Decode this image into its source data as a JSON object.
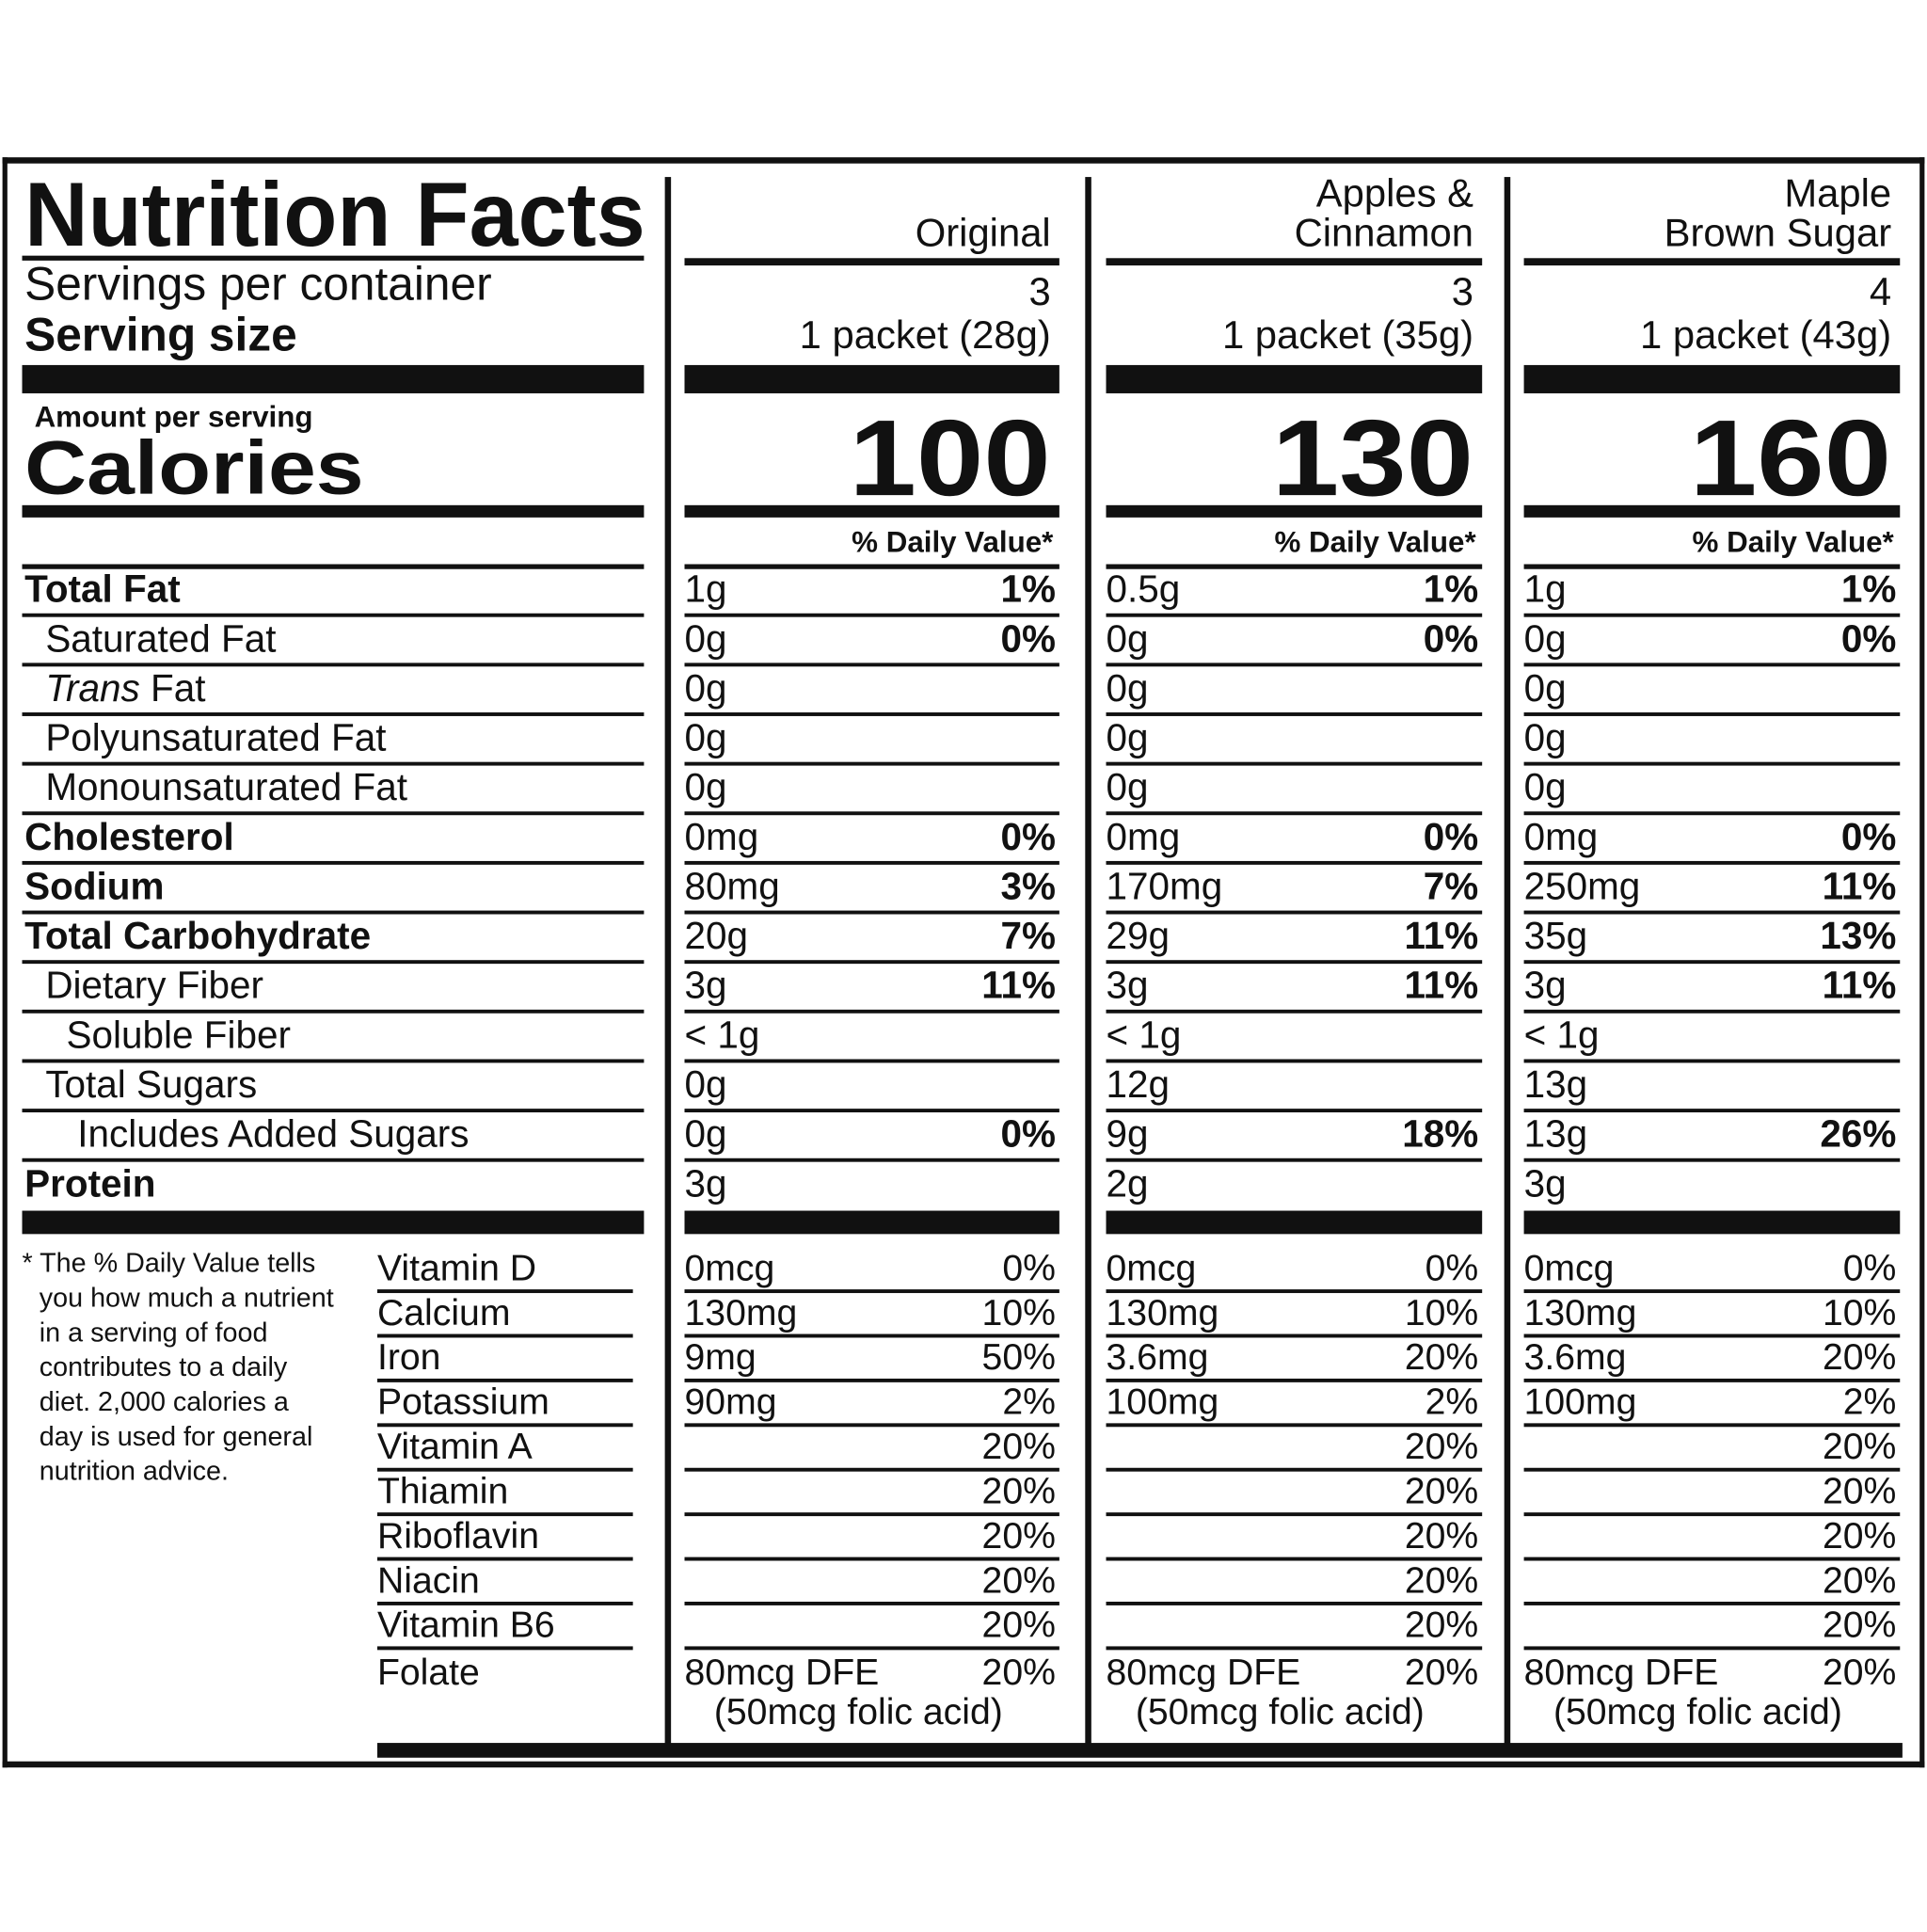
{
  "header": {
    "title": "Nutrition Facts",
    "servings_label": "Servings per container",
    "serving_size_label": "Serving size",
    "amount_per_serving": "Amount per serving",
    "calories_label": "Calories",
    "daily_value_header": "% Daily Value*"
  },
  "nutrients": [
    "Total Fat",
    "Saturated Fat",
    {
      "italic": "Trans",
      "text": "Fat"
    },
    "Polyunsaturated Fat",
    "Monounsaturated Fat",
    "Cholesterol",
    "Sodium",
    "Total Carbohydrate",
    "Dietary Fiber",
    "Soluble Fiber",
    "Total Sugars",
    "Includes Added Sugars",
    "Protein"
  ],
  "vitamins": [
    "Vitamin D",
    "Calcium",
    "Iron",
    "Potassium",
    "Vitamin A",
    "Thiamin",
    "Riboflavin",
    "Niacin",
    "Vitamin B6",
    "Folate"
  ],
  "footnote": [
    "* The % Daily Value tells",
    "you how much a nutrient",
    "in a serving of food",
    "contributes to a daily",
    "diet. 2,000 calories a",
    "day is used for general",
    "nutrition advice."
  ],
  "products": [
    {
      "name": [
        "Original"
      ],
      "servings": "3",
      "serving_size": "1 packet (28g)",
      "calories": "100",
      "amounts": [
        "1g",
        "0g",
        "0g",
        "0g",
        "0g",
        "0mg",
        "80mg",
        "20g",
        "3g",
        "< 1g",
        "0g",
        "0g",
        "3g"
      ],
      "dvs": [
        "1%",
        "0%",
        null,
        null,
        null,
        "0%",
        "3%",
        "7%",
        "11%",
        null,
        null,
        "0%",
        null
      ],
      "vitamin_amounts": [
        "0mcg",
        "130mg",
        "9mg",
        "90mg",
        null,
        null,
        null,
        null,
        null,
        "80mcg DFE"
      ],
      "vitamin_dvs": [
        "0%",
        "10%",
        "50%",
        "2%",
        "20%",
        "20%",
        "20%",
        "20%",
        "20%",
        "20%"
      ],
      "folate_note": "(50mcg folic acid)"
    },
    {
      "name": [
        "Apples &",
        "Cinnamon"
      ],
      "servings": "3",
      "serving_size": "1 packet (35g)",
      "calories": "130",
      "amounts": [
        "0.5g",
        "0g",
        "0g",
        "0g",
        "0g",
        "0mg",
        "170mg",
        "29g",
        "3g",
        "< 1g",
        "12g",
        "9g",
        "2g"
      ],
      "dvs": [
        "1%",
        "0%",
        null,
        null,
        null,
        "0%",
        "7%",
        "11%",
        "11%",
        null,
        null,
        "18%",
        null
      ],
      "vitamin_amounts": [
        "0mcg",
        "130mg",
        "3.6mg",
        "100mg",
        null,
        null,
        null,
        null,
        null,
        "80mcg DFE"
      ],
      "vitamin_dvs": [
        "0%",
        "10%",
        "20%",
        "2%",
        "20%",
        "20%",
        "20%",
        "20%",
        "20%",
        "20%"
      ],
      "folate_note": "(50mcg folic acid)"
    },
    {
      "name": [
        "Maple",
        "Brown Sugar"
      ],
      "servings": "4",
      "serving_size": "1 packet (43g)",
      "calories": "160",
      "amounts": [
        "1g",
        "0g",
        "0g",
        "0g",
        "0g",
        "0mg",
        "250mg",
        "35g",
        "3g",
        "< 1g",
        "13g",
        "13g",
        "3g"
      ],
      "dvs": [
        "1%",
        "0%",
        null,
        null,
        null,
        "0%",
        "11%",
        "13%",
        "11%",
        null,
        null,
        "26%",
        null
      ],
      "vitamin_amounts": [
        "0mcg",
        "130mg",
        "3.6mg",
        "100mg",
        null,
        null,
        null,
        null,
        null,
        "80mcg DFE"
      ],
      "vitamin_dvs": [
        "0%",
        "10%",
        "20%",
        "2%",
        "20%",
        "20%",
        "20%",
        "20%",
        "20%",
        "20%"
      ],
      "folate_note": "(50mcg folic acid)"
    }
  ]
}
